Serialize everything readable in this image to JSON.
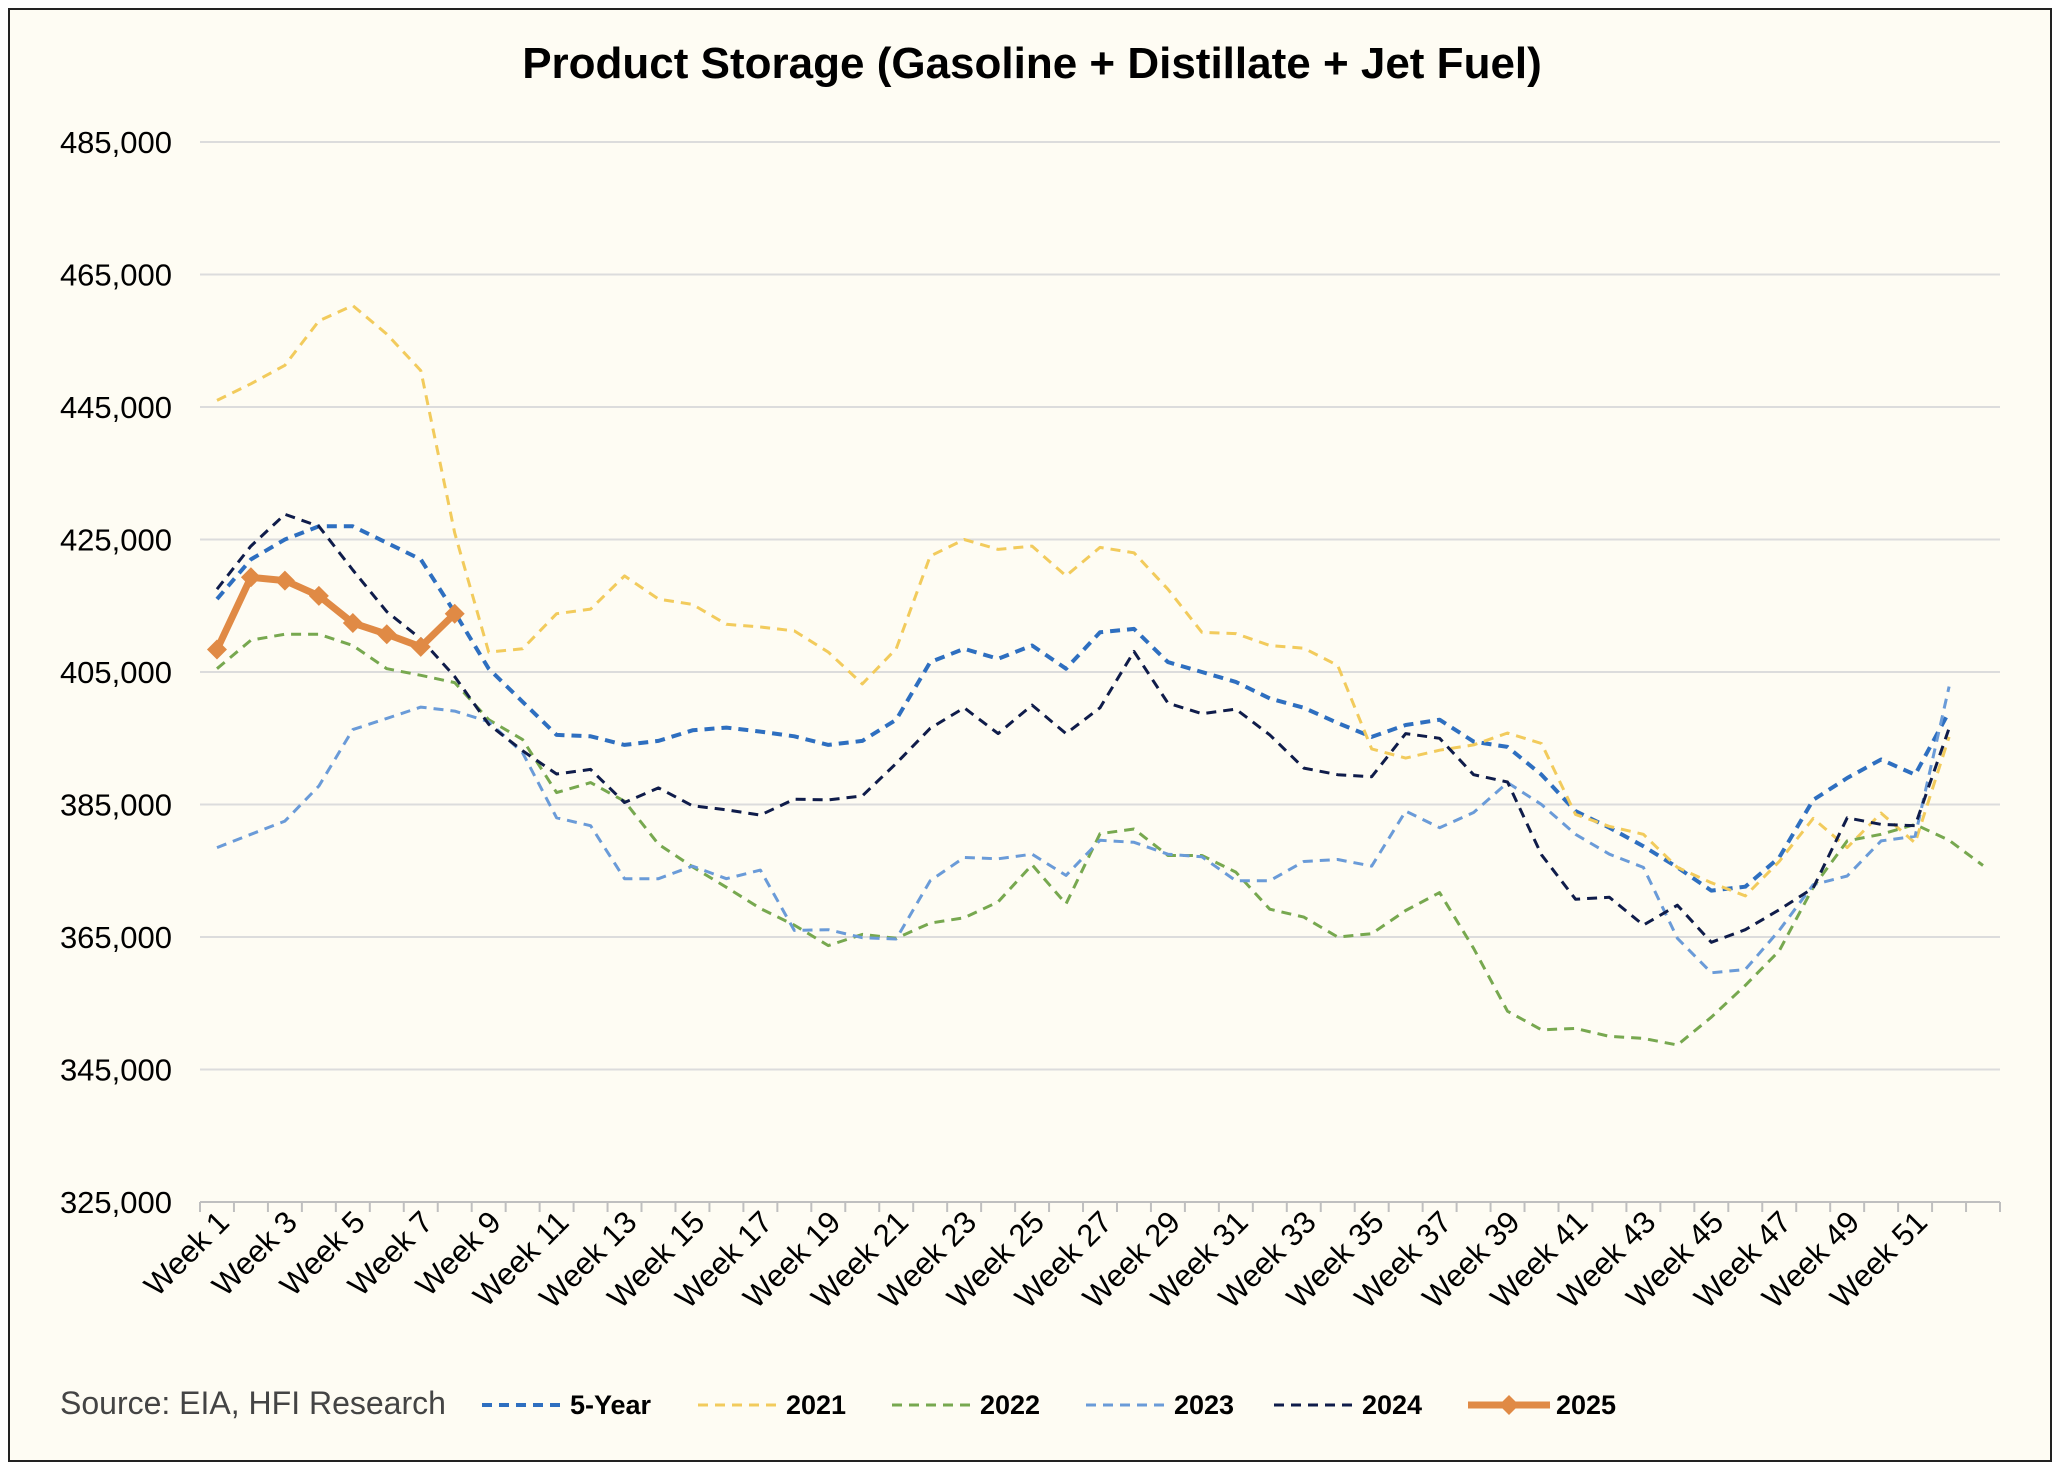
{
  "chart_data": {
    "type": "line",
    "title": "Product Storage (Gasoline + Distillate + Jet Fuel)",
    "source": "Source: EIA, HFI Research",
    "xlabel": "",
    "ylabel": "",
    "ylim": [
      325000,
      485000
    ],
    "yticks": [
      "485,000",
      "465,000",
      "445,000",
      "425,000",
      "405,000",
      "385,000",
      "365,000",
      "345,000",
      "325,000"
    ],
    "ytick_values": [
      485000,
      465000,
      445000,
      425000,
      405000,
      385000,
      365000,
      345000,
      325000
    ],
    "x": [
      1,
      2,
      3,
      4,
      5,
      6,
      7,
      8,
      9,
      10,
      11,
      12,
      13,
      14,
      15,
      16,
      17,
      18,
      19,
      20,
      21,
      22,
      23,
      24,
      25,
      26,
      27,
      28,
      29,
      30,
      31,
      32,
      33,
      34,
      35,
      36,
      37,
      38,
      39,
      40,
      41,
      42,
      43,
      44,
      45,
      46,
      47,
      48,
      49,
      50,
      51,
      52,
      53
    ],
    "xtick_labels": [
      "Week 1",
      "Week 3",
      "Week 5",
      "Week 7",
      "Week 9",
      "Week 11",
      "Week 13",
      "Week 15",
      "Week 17",
      "Week 19",
      "Week 21",
      "Week 23",
      "Week 25",
      "Week 27",
      "Week 29",
      "Week 31",
      "Week 33",
      "Week 35",
      "Week 37",
      "Week 39",
      "Week 41",
      "Week 43",
      "Week 45",
      "Week 47",
      "Week 49",
      "Week 51"
    ],
    "xtick_weeks": [
      1,
      3,
      5,
      7,
      9,
      11,
      13,
      15,
      17,
      19,
      21,
      23,
      25,
      27,
      29,
      31,
      33,
      35,
      37,
      39,
      41,
      43,
      45,
      47,
      49,
      51
    ],
    "grid": true,
    "legend_position": "bottom",
    "series": [
      {
        "name": "5-Year",
        "color": "#2e6fc0",
        "dash": "10,7",
        "width": 4,
        "values": [
          416000,
          422000,
          425000,
          427000,
          427000,
          424500,
          422000,
          414000,
          405500,
          400500,
          395500,
          395300,
          394000,
          394600,
          396200,
          396600,
          396000,
          395300,
          394000,
          394600,
          397800,
          406500,
          408500,
          407000,
          409000,
          405500,
          411000,
          411500,
          406500,
          405000,
          403500,
          401000,
          399600,
          397300,
          395200,
          397000,
          397800,
          394500,
          393700,
          389500,
          384000,
          381500,
          378700,
          375500,
          372000,
          372600,
          377000,
          385700,
          389000,
          391800,
          389500,
          399000,
          null
        ]
      },
      {
        "name": "2021",
        "color": "#f2cb5c",
        "dash": "10,7",
        "width": 3,
        "values": [
          446000,
          448500,
          451300,
          458000,
          460300,
          456000,
          450500,
          426000,
          408000,
          408500,
          413800,
          414500,
          419500,
          416000,
          415200,
          412200,
          411800,
          411200,
          408000,
          403200,
          408500,
          422500,
          425000,
          423500,
          424000,
          419500,
          423800,
          423000,
          417500,
          411000,
          410800,
          409000,
          408600,
          406000,
          393400,
          392000,
          393200,
          394000,
          395800,
          394200,
          383500,
          381700,
          380500,
          375500,
          373200,
          371200,
          376400,
          382900,
          378500,
          383700,
          379200,
          395200,
          null
        ]
      },
      {
        "name": "2022",
        "color": "#77a84f",
        "dash": "10,7",
        "width": 3,
        "values": [
          405500,
          409800,
          410700,
          410700,
          409000,
          405500,
          404500,
          403400,
          397800,
          394800,
          386800,
          388300,
          385500,
          379000,
          375600,
          372500,
          369300,
          366800,
          363700,
          365400,
          364800,
          367100,
          367900,
          370300,
          375900,
          370000,
          380600,
          381300,
          377300,
          377300,
          374800,
          369200,
          368000,
          365000,
          365500,
          369000,
          371700,
          363300,
          353800,
          351000,
          351200,
          350000,
          349700,
          348700,
          352900,
          357700,
          362900,
          372500,
          379500,
          380500,
          382000,
          379600,
          375800
        ]
      },
      {
        "name": "2023",
        "color": "#6a9bd8",
        "dash": "10,7",
        "width": 3,
        "values": [
          378500,
          380500,
          382500,
          387800,
          396300,
          398000,
          399700,
          399100,
          397500,
          392800,
          383000,
          381800,
          373800,
          373800,
          375700,
          373800,
          375100,
          366000,
          366100,
          364900,
          364700,
          373500,
          377000,
          376800,
          377500,
          374300,
          379600,
          379300,
          377500,
          377100,
          373500,
          373500,
          376400,
          376700,
          375700,
          384000,
          381500,
          383800,
          388300,
          385000,
          380500,
          377500,
          375500,
          364800,
          359600,
          360100,
          366000,
          372900,
          374200,
          379500,
          380200,
          402800,
          null
        ]
      },
      {
        "name": "2024",
        "color": "#0f1c4a",
        "dash": "10,7",
        "width": 3,
        "values": [
          417500,
          424000,
          428800,
          427000,
          420400,
          414100,
          410000,
          404300,
          397100,
          393100,
          389600,
          390300,
          385300,
          387500,
          384800,
          384200,
          383400,
          385800,
          385700,
          386300,
          391200,
          396500,
          399600,
          395700,
          400000,
          395700,
          399600,
          408100,
          400300,
          398700,
          399400,
          395500,
          390500,
          389500,
          389200,
          395700,
          395000,
          389500,
          388400,
          377400,
          370700,
          371000,
          366800,
          369800,
          364200,
          366100,
          369100,
          372400,
          383000,
          382000,
          381800,
          396500,
          null
        ]
      },
      {
        "name": "2025",
        "color": "#e08a45",
        "dash": "",
        "width": 7,
        "marker": "diamond",
        "values": [
          408400,
          419300,
          418800,
          416500,
          412400,
          410700,
          408800,
          413800,
          null,
          null,
          null,
          null,
          null,
          null,
          null,
          null,
          null,
          null,
          null,
          null,
          null,
          null,
          null,
          null,
          null,
          null,
          null,
          null,
          null,
          null,
          null,
          null,
          null,
          null,
          null,
          null,
          null,
          null,
          null,
          null,
          null,
          null,
          null,
          null,
          null,
          null,
          null,
          null,
          null,
          null,
          null,
          null,
          null
        ]
      }
    ]
  }
}
